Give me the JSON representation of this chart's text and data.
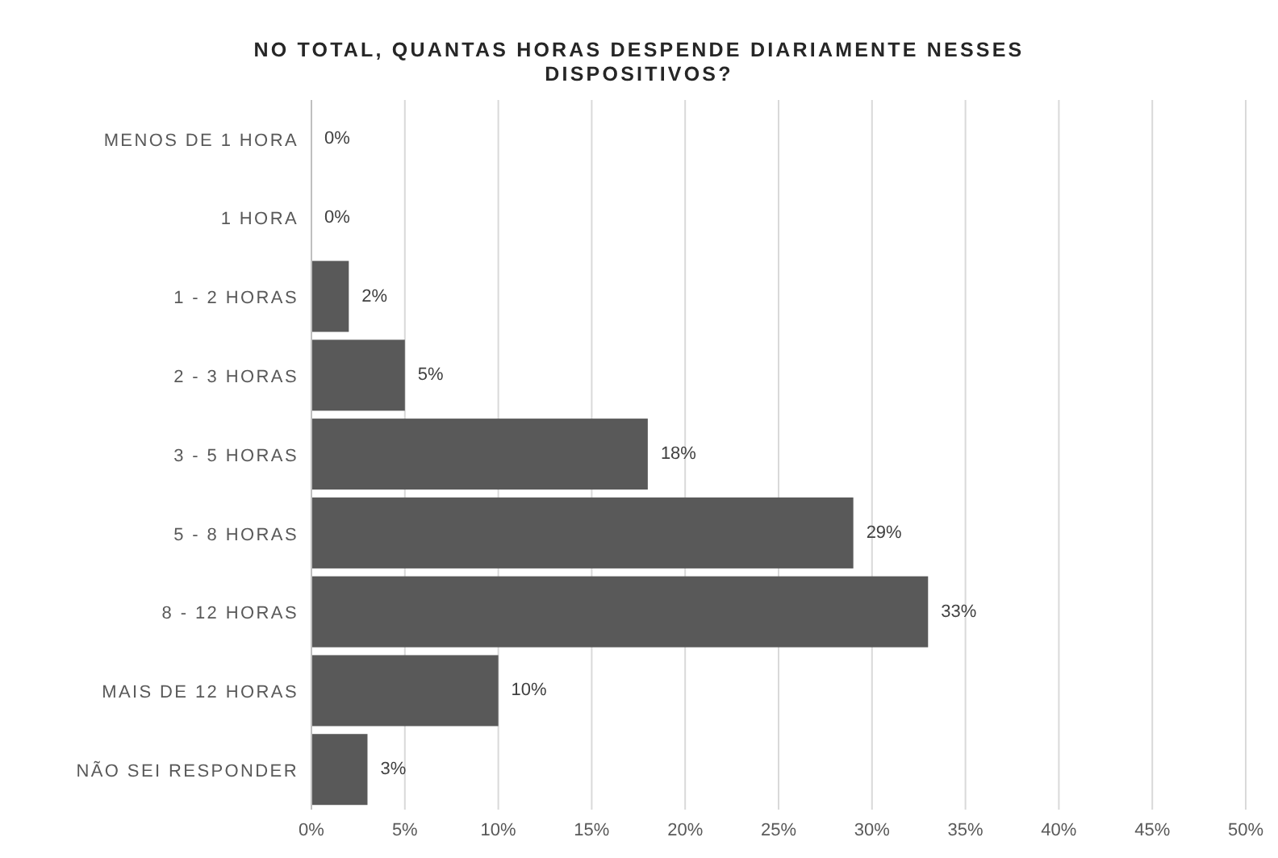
{
  "chart_data": {
    "type": "bar",
    "orientation": "horizontal",
    "title": "NO TOTAL, QUANTAS HORAS DESPENDE DIARIAMENTE NESSES DISPOSITIVOS?",
    "categories": [
      "MENOS DE 1 HORA",
      "1 HORA",
      "1 - 2 HORAS",
      "2 - 3 HORAS",
      "3 - 5 HORAS",
      "5 - 8 HORAS",
      "8 - 12 HORAS",
      "MAIS DE 12 HORAS",
      "NÃO SEI RESPONDER"
    ],
    "values": [
      0,
      0,
      2,
      5,
      18,
      29,
      33,
      10,
      3
    ],
    "value_labels": [
      "0%",
      "0%",
      "2%",
      "5%",
      "18%",
      "29%",
      "33%",
      "10%",
      "3%"
    ],
    "color": "#595959",
    "xlim": [
      0,
      50
    ],
    "xticks": [
      {
        "value": 0,
        "label": "0%"
      },
      {
        "value": 5,
        "label": "5%"
      },
      {
        "value": 10,
        "label": "10%"
      },
      {
        "value": 15,
        "label": "15%"
      },
      {
        "value": 20,
        "label": "20%"
      },
      {
        "value": 25,
        "label": "25%"
      },
      {
        "value": 30,
        "label": "30%"
      },
      {
        "value": 35,
        "label": "35%"
      },
      {
        "value": 40,
        "label": "40%"
      },
      {
        "value": 45,
        "label": "45%"
      },
      {
        "value": 50,
        "label": "50%"
      }
    ],
    "grid": "x",
    "legend": false
  }
}
